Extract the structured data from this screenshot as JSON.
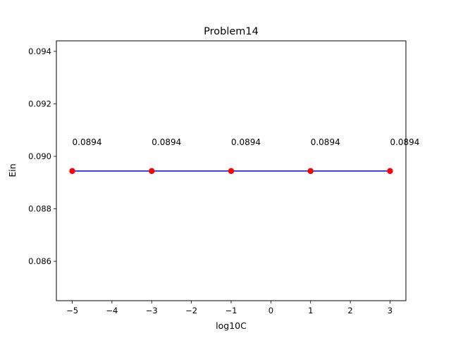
{
  "chart_data": {
    "type": "line",
    "title": "Problem14",
    "xlabel": "log10C",
    "ylabel": "Ein",
    "x": [
      -5,
      -3,
      -1,
      1,
      3
    ],
    "y": [
      0.08944,
      0.08944,
      0.08944,
      0.08944,
      0.08944
    ],
    "point_labels": [
      "0.0894",
      "0.0894",
      "0.0894",
      "0.0894",
      "0.0894"
    ],
    "xlim": [
      -5.4,
      3.4
    ],
    "ylim": [
      0.0845,
      0.0944
    ],
    "xticks": [
      -5,
      -4,
      -3,
      -2,
      -1,
      0,
      1,
      2,
      3
    ],
    "xtick_labels": [
      "−5",
      "−4",
      "−3",
      "−2",
      "−1",
      "0",
      "1",
      "2",
      "3"
    ],
    "yticks": [
      0.086,
      0.088,
      0.09,
      0.092,
      0.094
    ],
    "ytick_labels": [
      "0.086",
      "0.088",
      "0.090",
      "0.092",
      "0.094"
    ],
    "grid": false,
    "line_color": "#0000ff",
    "marker_color": "#ff0000"
  }
}
